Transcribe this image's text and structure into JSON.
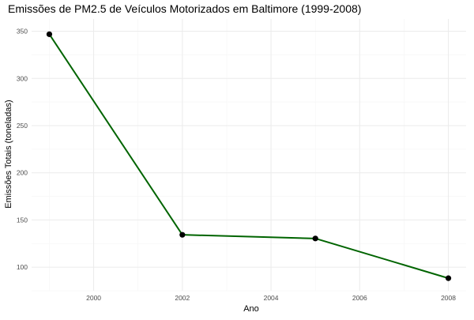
{
  "chart_data": {
    "type": "line",
    "title": "Emissões de PM2.5 de Veículos Motorizados em Baltimore (1999-2008)",
    "xlabel": "Ano",
    "ylabel": "Emissões Totais (toneladas)",
    "x": [
      1999,
      2002,
      2005,
      2008
    ],
    "series": [
      {
        "values": [
          346.8,
          134.3,
          130.4,
          88.3
        ]
      }
    ],
    "xlim": [
      1998.6,
      2008.4
    ],
    "ylim": [
      75,
      363
    ],
    "xticks": [
      2000,
      2002,
      2004,
      2006,
      2008
    ],
    "yticks": [
      100,
      150,
      200,
      250,
      300,
      350
    ],
    "grid": true,
    "legend": "none",
    "colors": {
      "line": "#006400",
      "point": "#000000",
      "grid_major": "#ebebeb",
      "grid_minor": "#f5f5f5",
      "tick_label": "#4d4d4d",
      "text": "#000000"
    }
  }
}
